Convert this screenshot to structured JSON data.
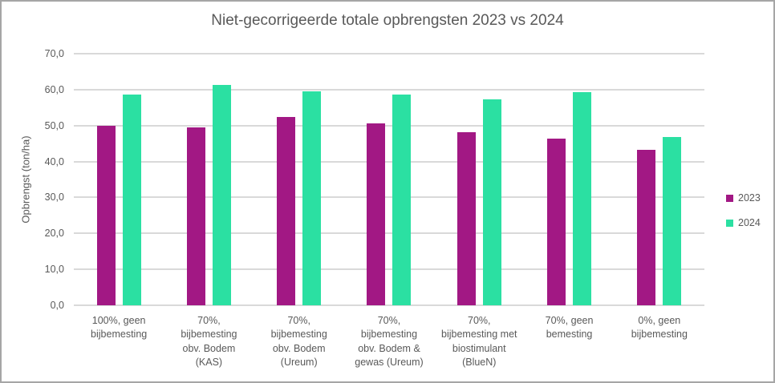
{
  "chart_data": {
    "type": "bar",
    "title": "Niet-gecorrigeerde totale opbrengsten 2023 vs 2024",
    "ylabel": "Opbrengst (ton/ha)",
    "xlabel": "",
    "ylim": [
      0,
      70
    ],
    "grid": true,
    "legend_position": "right",
    "gridline_color": "#D9D9D9",
    "text_color": "#595959",
    "background_color": "#FFFFFF",
    "yticks": [
      {
        "value": 0,
        "label": "0,0"
      },
      {
        "value": 10,
        "label": "10,0"
      },
      {
        "value": 20,
        "label": "20,0"
      },
      {
        "value": 30,
        "label": "30,0"
      },
      {
        "value": 40,
        "label": "40,0"
      },
      {
        "value": 50,
        "label": "50,0"
      },
      {
        "value": 60,
        "label": "60,0"
      },
      {
        "value": 70,
        "label": "70,0"
      }
    ],
    "categories": [
      "100%, geen\nbijbemesting",
      "70%,\nbijbemesting\nobv. Bodem\n(KAS)",
      "70%,\nbijbemesting\nobv. Bodem\n(Ureum)",
      "70%,\nbijbemesting\nobv. Bodem &\ngewas (Ureum)",
      "70%,\nbijbemesting met\nbiostimulant\n(BlueN)",
      "70%, geen\nbemesting",
      "0%, geen\nbijbemesting"
    ],
    "series": [
      {
        "name": "2023",
        "color": "#A21884",
        "values": [
          50.0,
          49.5,
          52.4,
          50.7,
          48.2,
          46.4,
          43.3
        ]
      },
      {
        "name": "2024",
        "color": "#2BE0A2",
        "values": [
          58.7,
          61.3,
          59.6,
          58.7,
          57.4,
          59.4,
          46.8
        ]
      }
    ]
  }
}
